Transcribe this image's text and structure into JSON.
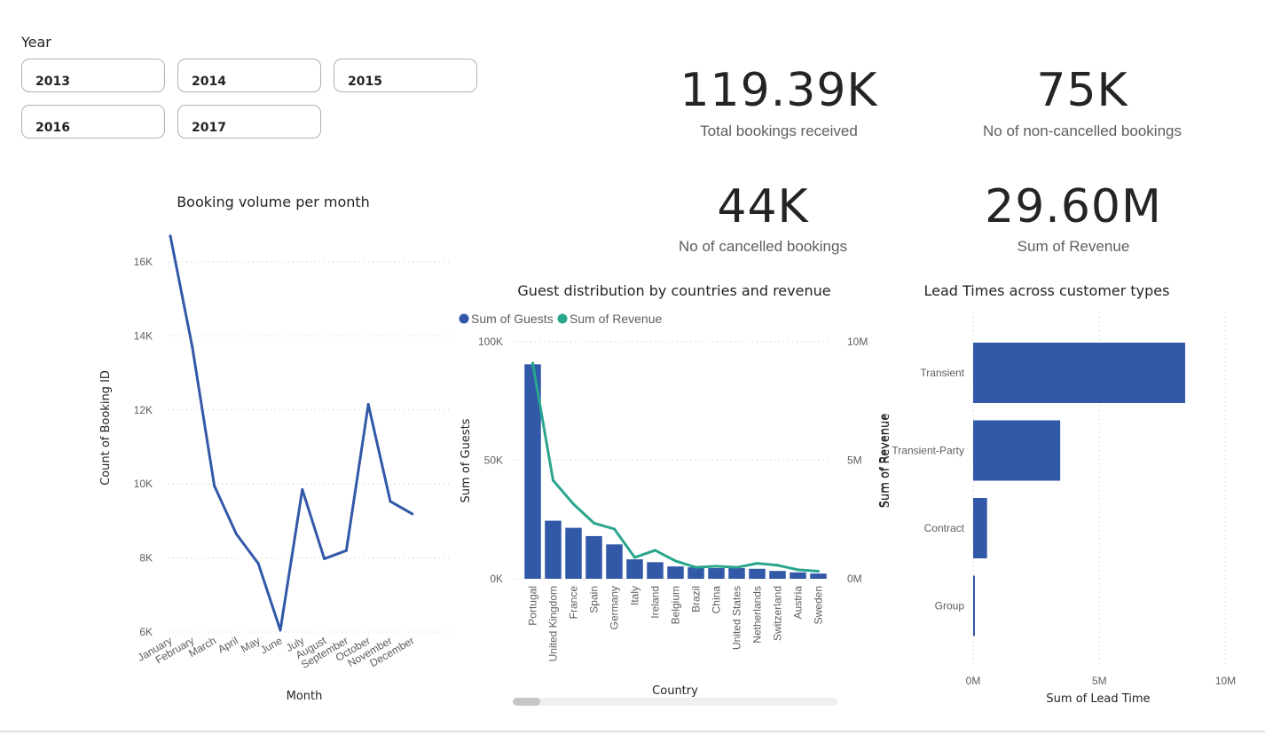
{
  "slicer": {
    "title": "Year",
    "options": [
      "2013",
      "2014",
      "2015",
      "2016",
      "2017"
    ]
  },
  "kpis": [
    {
      "value": "119.39K",
      "label": "Total bookings received"
    },
    {
      "value": "75K",
      "label": "No of non-cancelled bookings"
    },
    {
      "value": "44K",
      "label": "No of cancelled bookings"
    },
    {
      "value": "29.60M",
      "label": "Sum of Revenue"
    }
  ],
  "colors": {
    "bar": "#3258a8",
    "line": "#2aa58e",
    "grid": "#c8c6c4"
  },
  "chart_data": [
    {
      "type": "line",
      "title": "Booking volume per month",
      "xlabel": "Month",
      "ylabel": "Count of Booking ID",
      "categories": [
        "January",
        "February",
        "March",
        "April",
        "May",
        "June",
        "July",
        "August",
        "September",
        "October",
        "November",
        "December"
      ],
      "values": [
        16700,
        13700,
        9950,
        8650,
        7850,
        6050,
        9850,
        7980,
        8200,
        12150,
        9530,
        9190
      ],
      "yticks": [
        6000,
        8000,
        10000,
        12000,
        14000,
        16000
      ],
      "ytick_labels": [
        "6K",
        "8K",
        "10K",
        "12K",
        "14K",
        "16K"
      ],
      "ylim": [
        6000,
        17000
      ],
      "grid": true
    },
    {
      "type": "bar",
      "title": "Guest distribution by countries and revenue",
      "xlabel": "Country",
      "ylabel": "Sum of Guests",
      "y2label": "Sum of Revenue",
      "legend": "top-left",
      "categories": [
        "Portugal",
        "United Kingdom",
        "France",
        "Spain",
        "Germany",
        "Italy",
        "Ireland",
        "Belgium",
        "Brazil",
        "China",
        "United States",
        "Netherlands",
        "Switzerland",
        "Austria",
        "Sweden"
      ],
      "series": [
        {
          "name": "Sum of Guests",
          "type": "bar",
          "axis": "left",
          "values": [
            90500,
            24500,
            21500,
            18000,
            14500,
            8200,
            7000,
            5200,
            4800,
            4500,
            4500,
            4200,
            3300,
            2700,
            2200
          ]
        },
        {
          "name": "Sum of Revenue",
          "type": "line",
          "axis": "right",
          "values": [
            9100000,
            4150000,
            3150000,
            2350000,
            2100000,
            900000,
            1200000,
            750000,
            480000,
            530000,
            480000,
            650000,
            570000,
            380000,
            320000
          ]
        }
      ],
      "yticks": [
        0,
        50000,
        100000
      ],
      "ytick_labels": [
        "0K",
        "50K",
        "100K"
      ],
      "ylim": [
        0,
        100000
      ],
      "y2ticks": [
        0,
        5000000,
        10000000
      ],
      "y2tick_labels": [
        "0M",
        "5M",
        "10M"
      ],
      "y2lim": [
        0,
        10000000
      ],
      "grid": true
    },
    {
      "type": "bar",
      "orientation": "horizontal",
      "title": "Lead Times across customer types",
      "xlabel": "Sum of Lead Time",
      "ylabel": "Sum of Revenue",
      "categories": [
        "Transient",
        "Transient-Party",
        "Contract",
        "Group"
      ],
      "values": [
        8400000,
        3450000,
        550000,
        55000
      ],
      "xticks": [
        0,
        5000000,
        10000000
      ],
      "xtick_labels": [
        "0M",
        "5M",
        "10M"
      ],
      "xlim": [
        0,
        10000000
      ],
      "grid": true
    }
  ]
}
